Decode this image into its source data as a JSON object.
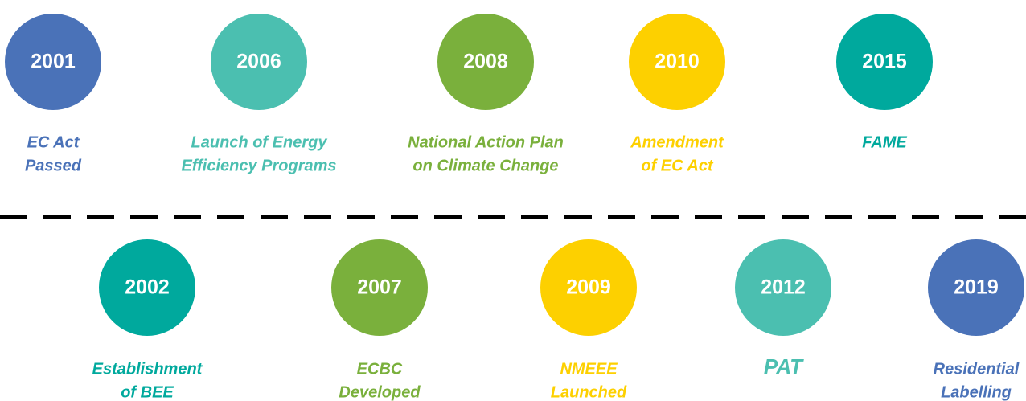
{
  "timeline": {
    "top": [
      {
        "year": "2001",
        "label": [
          "EC Act",
          "Passed"
        ],
        "color": "#4a72b8"
      },
      {
        "year": "2006",
        "label": [
          "Launch of Energy",
          "Efficiency Programs"
        ],
        "color": "#4bbfb0"
      },
      {
        "year": "2008",
        "label": [
          "National Action Plan",
          "on Climate Change"
        ],
        "color": "#7ab03c"
      },
      {
        "year": "2010",
        "label": [
          "Amendment",
          "of EC Act"
        ],
        "color": "#fdd000"
      },
      {
        "year": "2015",
        "label": [
          "FAME"
        ],
        "color": "#00a99d"
      }
    ],
    "bottom": [
      {
        "year": "2002",
        "label": [
          "Establishment",
          "of BEE"
        ],
        "color": "#00a99d"
      },
      {
        "year": "2007",
        "label": [
          "ECBC",
          "Developed"
        ],
        "color": "#7ab03c"
      },
      {
        "year": "2009",
        "label": [
          "NMEEE",
          "Launched"
        ],
        "color": "#fdd000"
      },
      {
        "year": "2012",
        "label": [
          "PAT"
        ],
        "color": "#4bbfb0"
      },
      {
        "year": "2019",
        "label": [
          "Residential",
          "Labelling"
        ],
        "color": "#4a72b8"
      }
    ]
  }
}
